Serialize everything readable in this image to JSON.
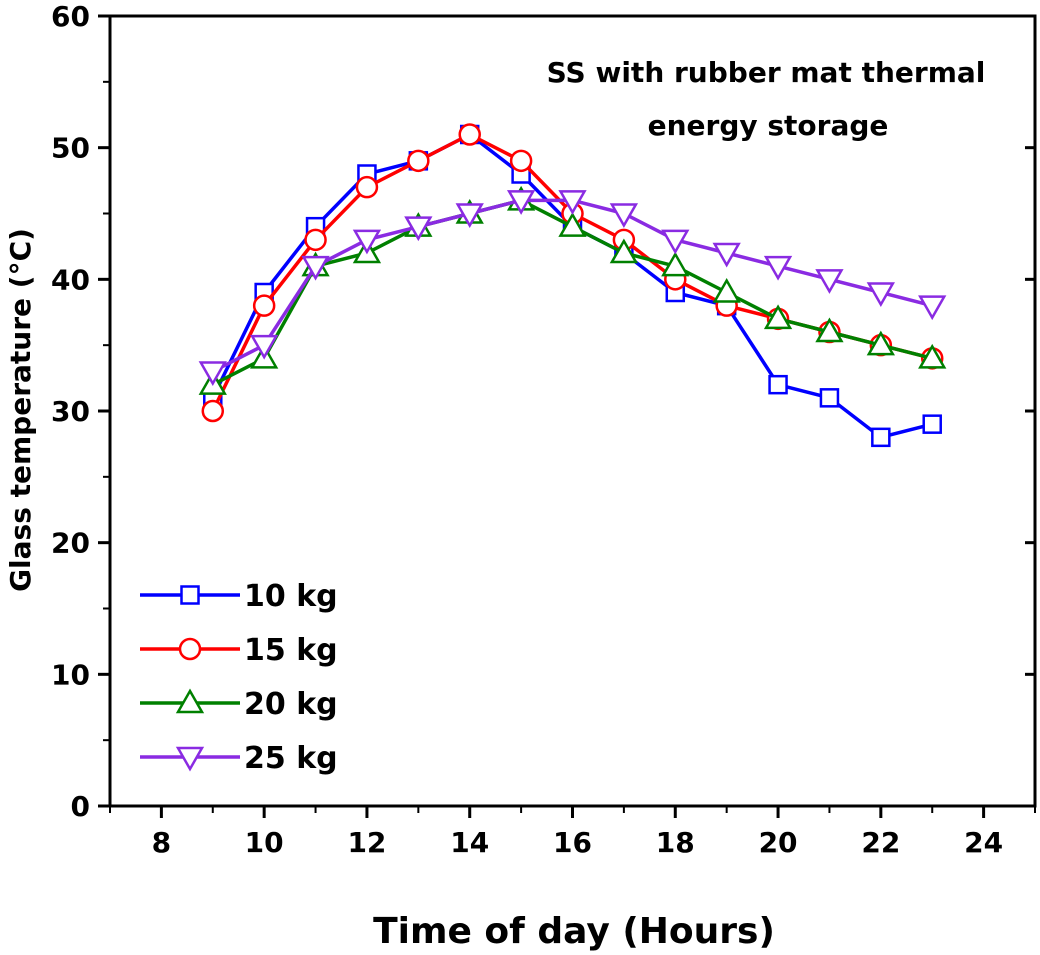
{
  "chart_data": {
    "type": "line",
    "title": "",
    "annotation": [
      "SS with rubber mat thermal",
      "energy storage"
    ],
    "xlabel": "Time of day (Hours)",
    "ylabel": "Glass temperature (°C)",
    "xlim": [
      7,
      25
    ],
    "ylim": [
      0,
      60
    ],
    "xticks": [
      8,
      10,
      12,
      14,
      16,
      18,
      20,
      22,
      24
    ],
    "yticks": [
      0,
      10,
      20,
      30,
      40,
      50,
      60
    ],
    "x": [
      9,
      10,
      11,
      12,
      13,
      14,
      15,
      16,
      17,
      18,
      19,
      20,
      21,
      22,
      23
    ],
    "legend_position": "bottom-left",
    "grid": false,
    "series": [
      {
        "name": "10 kg",
        "color": "#0000ff",
        "marker": "square",
        "values": [
          31,
          39,
          44,
          48,
          49,
          51,
          48,
          44,
          42,
          39,
          38,
          32,
          31,
          28,
          29
        ]
      },
      {
        "name": "15 kg",
        "color": "#ff0000",
        "marker": "circle",
        "values": [
          30,
          38,
          43,
          47,
          49,
          51,
          49,
          45,
          43,
          40,
          38,
          37,
          36,
          35,
          34
        ]
      },
      {
        "name": "20 kg",
        "color": "#008000",
        "marker": "triangle-up",
        "values": [
          32,
          34,
          41,
          42,
          44,
          45,
          46,
          44,
          42,
          41,
          39,
          37,
          36,
          35,
          34
        ]
      },
      {
        "name": "25 kg",
        "color": "#8a2be2",
        "marker": "triangle-down",
        "values": [
          33,
          35,
          41,
          43,
          44,
          45,
          46,
          46,
          45,
          43,
          42,
          41,
          40,
          39,
          38
        ]
      }
    ]
  }
}
